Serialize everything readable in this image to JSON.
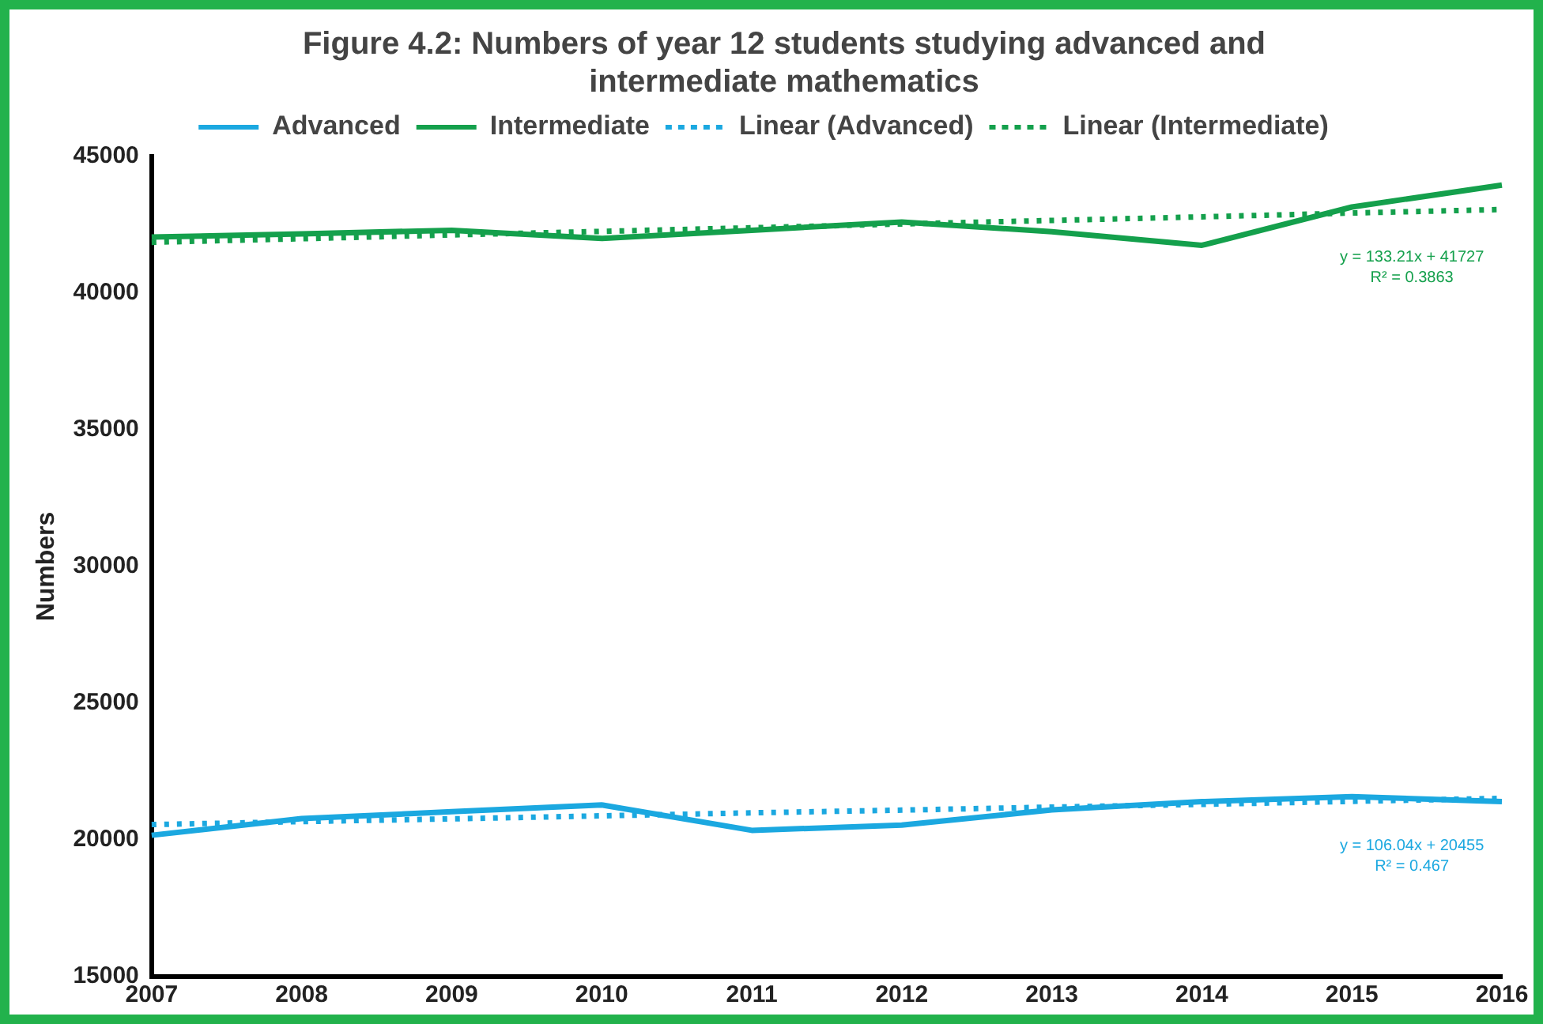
{
  "chart_data": {
    "type": "line",
    "title": "Figure 4.2: Numbers of year 12 students studying advanced and intermediate mathematics",
    "ylabel": "Numbers",
    "categories": [
      "2007",
      "2008",
      "2009",
      "2010",
      "2011",
      "2012",
      "2013",
      "2014",
      "2015",
      "2016"
    ],
    "series": [
      {
        "name": "Advanced",
        "color": "#1ba8e0",
        "values": [
          20170,
          20780,
          21030,
          21280,
          20350,
          20540,
          21100,
          21400,
          21580,
          21400
        ]
      },
      {
        "name": "Intermediate",
        "color": "#14a04c",
        "values": [
          42050,
          42170,
          42300,
          42000,
          42300,
          42600,
          42250,
          41750,
          43150,
          43950
        ]
      },
      {
        "name": "Linear (Advanced)",
        "color": "#1ba8e0",
        "line_style": "dotted",
        "values": [
          20560,
          20670,
          20770,
          20880,
          20990,
          21090,
          21200,
          21300,
          21410,
          21520
        ]
      },
      {
        "name": "Linear (Intermediate)",
        "color": "#14a04c",
        "line_style": "dotted",
        "values": [
          41860,
          41990,
          42130,
          42260,
          42390,
          42530,
          42660,
          42790,
          42930,
          43060
        ]
      }
    ],
    "ylim": [
      15000,
      45000
    ],
    "yticks": [
      15000,
      20000,
      25000,
      30000,
      35000,
      40000,
      45000
    ],
    "grid": false,
    "legend": "top",
    "marker": "none",
    "line_style": "solid",
    "annotations": [
      "y = 106.04x + 20455",
      "R² = 0.467",
      "y = 133.21x + 41727",
      "R² = 0.3863"
    ]
  }
}
